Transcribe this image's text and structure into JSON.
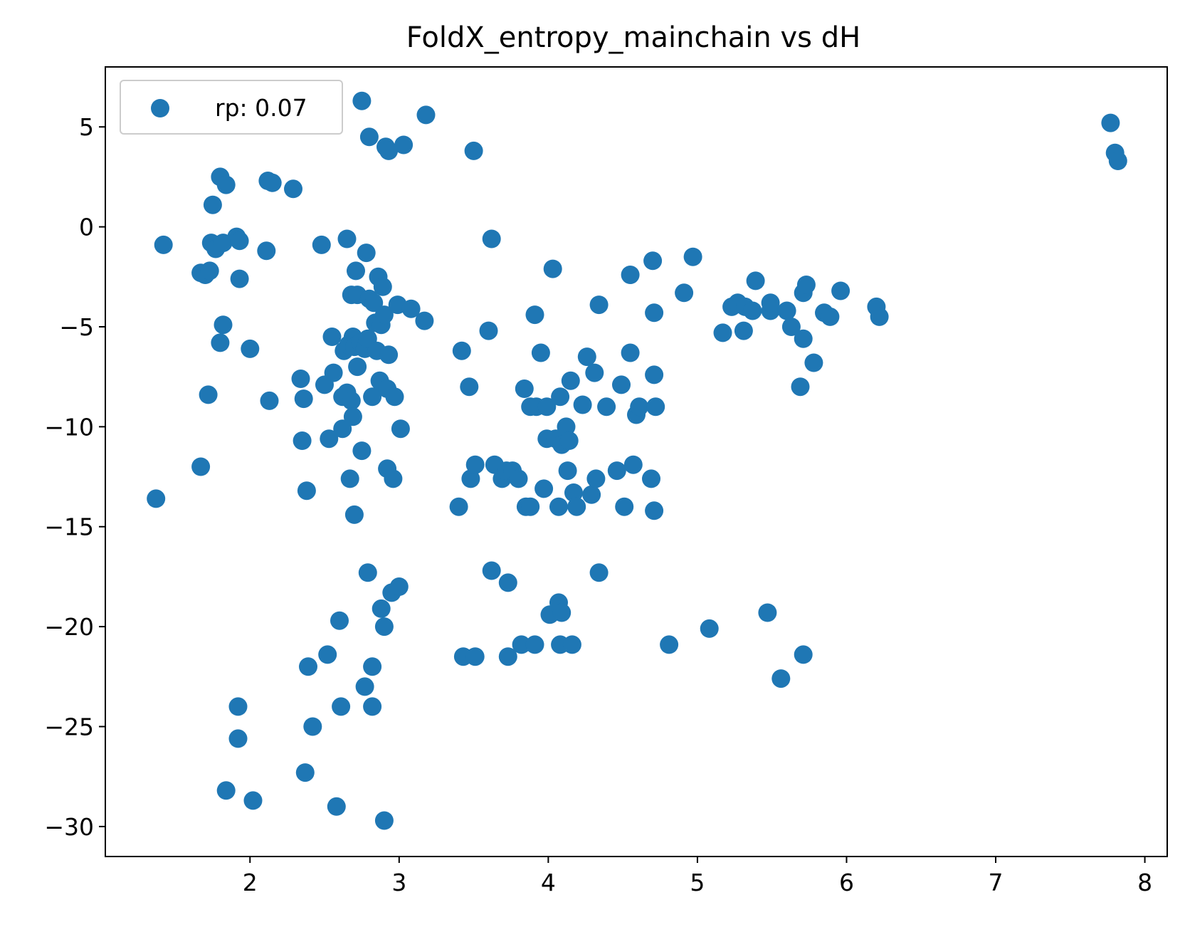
{
  "chart_data": {
    "type": "scatter",
    "title": "FoldX_entropy_mainchain vs dH",
    "xlabel": "",
    "ylabel": "",
    "xlim": [
      1.03,
      8.15
    ],
    "ylim": [
      -31.5,
      8.0
    ],
    "xticks": [
      2,
      3,
      4,
      5,
      6,
      7,
      8
    ],
    "yticks": [
      5,
      0,
      -5,
      -10,
      -15,
      -20,
      -25,
      -30
    ],
    "grid": false,
    "legend": {
      "position": "top-left",
      "entries": [
        "rp: 0.07"
      ]
    },
    "series": [
      {
        "color": "#1f77b4",
        "points": [
          [
            1.37,
            -13.6
          ],
          [
            1.42,
            -0.9
          ],
          [
            1.67,
            -12.0
          ],
          [
            1.67,
            -2.3
          ],
          [
            1.7,
            -2.4
          ],
          [
            1.72,
            -8.4
          ],
          [
            1.73,
            -2.2
          ],
          [
            1.74,
            -0.8
          ],
          [
            1.75,
            1.1
          ],
          [
            1.77,
            -1.1
          ],
          [
            1.8,
            2.5
          ],
          [
            1.8,
            -5.8
          ],
          [
            1.82,
            -4.9
          ],
          [
            1.82,
            -0.8
          ],
          [
            1.84,
            2.1
          ],
          [
            1.84,
            -28.2
          ],
          [
            1.91,
            -0.5
          ],
          [
            1.92,
            -24.0
          ],
          [
            1.92,
            -25.6
          ],
          [
            1.93,
            -0.7
          ],
          [
            1.93,
            -2.6
          ],
          [
            2.0,
            -6.1
          ],
          [
            2.02,
            -28.7
          ],
          [
            2.11,
            -1.2
          ],
          [
            2.12,
            2.3
          ],
          [
            2.13,
            -8.7
          ],
          [
            2.15,
            2.2
          ],
          [
            2.29,
            1.9
          ],
          [
            2.34,
            -7.6
          ],
          [
            2.35,
            -10.7
          ],
          [
            2.36,
            -8.6
          ],
          [
            2.37,
            -27.3
          ],
          [
            2.38,
            -13.2
          ],
          [
            2.39,
            -22.0
          ],
          [
            2.42,
            -25.0
          ],
          [
            2.48,
            -0.9
          ],
          [
            2.5,
            -7.9
          ],
          [
            2.52,
            -21.4
          ],
          [
            2.53,
            -10.6
          ],
          [
            2.55,
            -5.5
          ],
          [
            2.56,
            -7.3
          ],
          [
            2.58,
            -29.0
          ],
          [
            2.6,
            -19.7
          ],
          [
            2.61,
            -24.0
          ],
          [
            2.62,
            -8.5
          ],
          [
            2.62,
            -10.1
          ],
          [
            2.63,
            -6.2
          ],
          [
            2.65,
            -8.3
          ],
          [
            2.65,
            -0.6
          ],
          [
            2.66,
            -5.9
          ],
          [
            2.67,
            -12.6
          ],
          [
            2.68,
            -3.4
          ],
          [
            2.68,
            -8.7
          ],
          [
            2.69,
            -9.5
          ],
          [
            2.69,
            -5.5
          ],
          [
            2.7,
            -14.4
          ],
          [
            2.7,
            -6.0
          ],
          [
            2.71,
            -2.2
          ],
          [
            2.72,
            -3.4
          ],
          [
            2.72,
            -7.0
          ],
          [
            2.74,
            -5.8
          ],
          [
            2.75,
            -11.2
          ],
          [
            2.75,
            6.3
          ],
          [
            2.77,
            -6.1
          ],
          [
            2.77,
            -23.0
          ],
          [
            2.78,
            -1.3
          ],
          [
            2.79,
            -5.6
          ],
          [
            2.79,
            -17.3
          ],
          [
            2.8,
            4.5
          ],
          [
            2.8,
            -3.6
          ],
          [
            2.82,
            -22.0
          ],
          [
            2.82,
            -24.0
          ],
          [
            2.82,
            -8.5
          ],
          [
            2.83,
            -3.8
          ],
          [
            2.84,
            -4.8
          ],
          [
            2.85,
            -6.2
          ],
          [
            2.86,
            -2.5
          ],
          [
            2.87,
            -7.7
          ],
          [
            2.88,
            -4.9
          ],
          [
            2.88,
            -19.1
          ],
          [
            2.89,
            -3.0
          ],
          [
            2.9,
            -4.4
          ],
          [
            2.9,
            -20.0
          ],
          [
            2.9,
            -29.7
          ],
          [
            2.91,
            4.0
          ],
          [
            2.92,
            -8.1
          ],
          [
            2.92,
            -12.1
          ],
          [
            2.93,
            -6.4
          ],
          [
            2.93,
            3.8
          ],
          [
            2.95,
            -18.3
          ],
          [
            2.96,
            -12.6
          ],
          [
            2.97,
            -8.5
          ],
          [
            2.99,
            -3.9
          ],
          [
            3.0,
            -18.0
          ],
          [
            3.01,
            -10.1
          ],
          [
            3.03,
            4.1
          ],
          [
            3.08,
            -4.1
          ],
          [
            3.17,
            -4.7
          ],
          [
            3.18,
            5.6
          ],
          [
            3.4,
            -14.0
          ],
          [
            3.42,
            -6.2
          ],
          [
            3.43,
            -21.5
          ],
          [
            3.47,
            -8.0
          ],
          [
            3.48,
            -12.6
          ],
          [
            3.5,
            3.8
          ],
          [
            3.51,
            -11.9
          ],
          [
            3.51,
            -21.5
          ],
          [
            3.6,
            -5.2
          ],
          [
            3.62,
            -0.6
          ],
          [
            3.62,
            -17.2
          ],
          [
            3.64,
            -11.9
          ],
          [
            3.69,
            -12.6
          ],
          [
            3.72,
            -12.2
          ],
          [
            3.73,
            -21.5
          ],
          [
            3.73,
            -17.8
          ],
          [
            3.76,
            -12.2
          ],
          [
            3.8,
            -12.6
          ],
          [
            3.82,
            -20.9
          ],
          [
            3.84,
            -8.1
          ],
          [
            3.85,
            -14.0
          ],
          [
            3.88,
            -9.0
          ],
          [
            3.88,
            -14.0
          ],
          [
            3.91,
            -4.4
          ],
          [
            3.91,
            -20.9
          ],
          [
            3.92,
            -9.0
          ],
          [
            3.95,
            -6.3
          ],
          [
            3.97,
            -13.1
          ],
          [
            3.99,
            -10.6
          ],
          [
            3.99,
            -9.0
          ],
          [
            4.01,
            -19.4
          ],
          [
            4.03,
            -2.1
          ],
          [
            4.05,
            -10.6
          ],
          [
            4.07,
            -14.0
          ],
          [
            4.07,
            -18.8
          ],
          [
            4.08,
            -20.9
          ],
          [
            4.08,
            -8.5
          ],
          [
            4.09,
            -10.9
          ],
          [
            4.09,
            -19.3
          ],
          [
            4.12,
            -10.0
          ],
          [
            4.13,
            -12.2
          ],
          [
            4.14,
            -10.7
          ],
          [
            4.15,
            -7.7
          ],
          [
            4.16,
            -20.9
          ],
          [
            4.17,
            -13.3
          ],
          [
            4.19,
            -14.0
          ],
          [
            4.23,
            -8.9
          ],
          [
            4.26,
            -6.5
          ],
          [
            4.29,
            -13.4
          ],
          [
            4.31,
            -7.3
          ],
          [
            4.32,
            -12.6
          ],
          [
            4.34,
            -3.9
          ],
          [
            4.34,
            -17.3
          ],
          [
            4.39,
            -9.0
          ],
          [
            4.46,
            -12.2
          ],
          [
            4.49,
            -7.9
          ],
          [
            4.51,
            -14.0
          ],
          [
            4.55,
            -6.3
          ],
          [
            4.55,
            -2.4
          ],
          [
            4.57,
            -11.9
          ],
          [
            4.59,
            -9.4
          ],
          [
            4.61,
            -9.0
          ],
          [
            4.69,
            -12.6
          ],
          [
            4.7,
            -1.7
          ],
          [
            4.71,
            -7.4
          ],
          [
            4.71,
            -14.2
          ],
          [
            4.71,
            -4.3
          ],
          [
            4.72,
            -9.0
          ],
          [
            4.81,
            -20.9
          ],
          [
            4.91,
            -3.3
          ],
          [
            4.97,
            -1.5
          ],
          [
            5.08,
            -20.1
          ],
          [
            5.17,
            -5.3
          ],
          [
            5.23,
            -4.0
          ],
          [
            5.27,
            -3.8
          ],
          [
            5.31,
            -5.2
          ],
          [
            5.32,
            -4.0
          ],
          [
            5.37,
            -4.2
          ],
          [
            5.39,
            -2.7
          ],
          [
            5.47,
            -19.3
          ],
          [
            5.49,
            -4.2
          ],
          [
            5.49,
            -3.8
          ],
          [
            5.56,
            -22.6
          ],
          [
            5.6,
            -4.2
          ],
          [
            5.63,
            -5.0
          ],
          [
            5.69,
            -8.0
          ],
          [
            5.71,
            -3.3
          ],
          [
            5.71,
            -5.6
          ],
          [
            5.71,
            -21.4
          ],
          [
            5.73,
            -2.9
          ],
          [
            5.78,
            -6.8
          ],
          [
            5.85,
            -4.3
          ],
          [
            5.89,
            -4.5
          ],
          [
            5.96,
            -3.2
          ],
          [
            6.2,
            -4.0
          ],
          [
            6.22,
            -4.5
          ],
          [
            7.77,
            5.2
          ],
          [
            7.8,
            3.7
          ],
          [
            7.82,
            3.3
          ]
        ]
      }
    ]
  }
}
